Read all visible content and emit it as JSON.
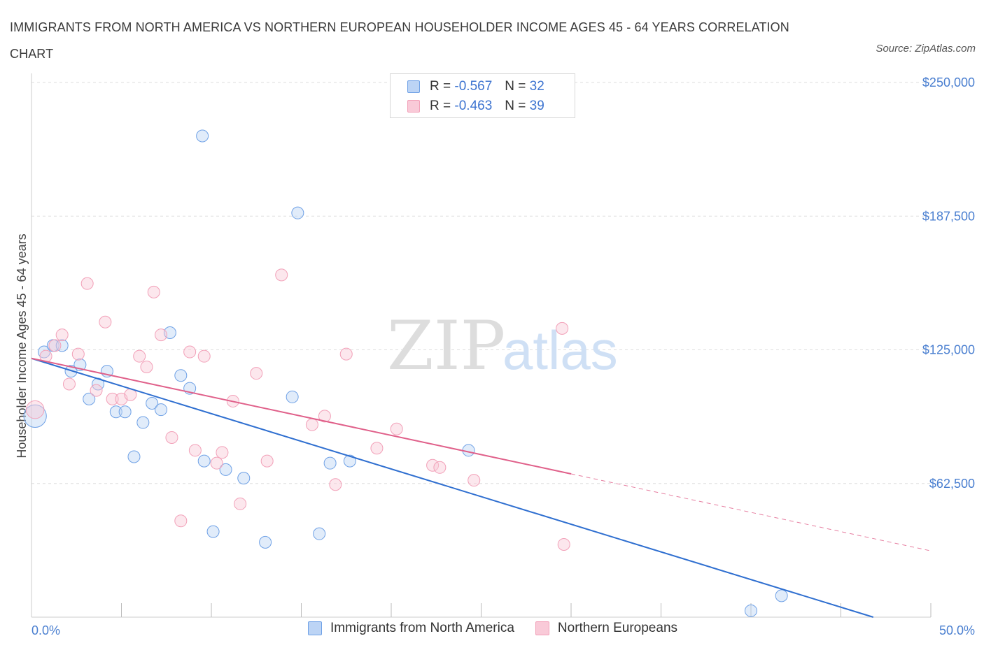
{
  "title": "IMMIGRANTS FROM NORTH AMERICA VS NORTHERN EUROPEAN HOUSEHOLDER INCOME AGES 45 - 64 YEARS CORRELATION CHART",
  "source": "Source: ZipAtlas.com",
  "watermark": {
    "zip": "ZIP",
    "atlas": "atlas"
  },
  "legend": {
    "rows": [
      {
        "r_label": "R = ",
        "r_value": "-0.567",
        "n_label": "N = ",
        "n_value": "32"
      },
      {
        "r_label": "R = ",
        "r_value": "-0.463",
        "n_label": "N = ",
        "n_value": "39"
      }
    ]
  },
  "chart_data": {
    "type": "scatter",
    "title": "IMMIGRANTS FROM NORTH AMERICA VS NORTHERN EUROPEAN HOUSEHOLDER INCOME AGES 45 - 64 YEARS CORRELATION CHART",
    "xlabel": "",
    "ylabel": "Householder Income Ages 45 - 64 years",
    "xlim": [
      0,
      50
    ],
    "ylim": [
      0,
      250000
    ],
    "x_tick_labels": [
      "0.0%",
      "50.0%"
    ],
    "y_ticks": [
      62500,
      125000,
      187500,
      250000
    ],
    "y_tick_labels": [
      "$62,500",
      "$125,000",
      "$187,500",
      "$250,000"
    ],
    "grid": true,
    "series": [
      {
        "name": "Immigrants from North America",
        "color": "#6fa1e6",
        "line_color": "#2f6fd0",
        "trend": {
          "x": [
            0,
            46.8
          ],
          "y": [
            121000,
            0
          ]
        },
        "points": [
          [
            0.2,
            94000,
            1.9
          ],
          [
            0.7,
            124000,
            1
          ],
          [
            1.2,
            127000,
            1
          ],
          [
            1.7,
            127000,
            1
          ],
          [
            2.2,
            115000,
            1
          ],
          [
            2.7,
            118000,
            1
          ],
          [
            3.2,
            102000,
            1
          ],
          [
            3.7,
            109000,
            1
          ],
          [
            4.2,
            115000,
            1
          ],
          [
            4.7,
            96000,
            1
          ],
          [
            5.2,
            96000,
            1
          ],
          [
            5.7,
            75000,
            1
          ],
          [
            6.2,
            91000,
            1
          ],
          [
            6.7,
            100000,
            1
          ],
          [
            7.2,
            97000,
            1
          ],
          [
            7.7,
            133000,
            1
          ],
          [
            8.3,
            113000,
            1
          ],
          [
            8.8,
            107000,
            1
          ],
          [
            9.5,
            225000,
            1
          ],
          [
            9.6,
            73000,
            1
          ],
          [
            10.1,
            40000,
            1
          ],
          [
            10.8,
            69000,
            1
          ],
          [
            11.8,
            65000,
            1
          ],
          [
            13.0,
            35000,
            1
          ],
          [
            14.5,
            103000,
            1
          ],
          [
            14.8,
            189000,
            1
          ],
          [
            16.0,
            39000,
            1
          ],
          [
            16.6,
            72000,
            1
          ],
          [
            17.7,
            73000,
            1
          ],
          [
            24.3,
            78000,
            1
          ],
          [
            40.0,
            3000,
            1
          ],
          [
            41.7,
            10000,
            1
          ]
        ]
      },
      {
        "name": "Northern Europeans",
        "color": "#f2a0b8",
        "line_color": "#e0608a",
        "trend": {
          "x": [
            0,
            30
          ],
          "y": [
            121000,
            67000
          ]
        },
        "trend_dashed": {
          "x": [
            30,
            50
          ],
          "y": [
            67000,
            31000
          ]
        },
        "points": [
          [
            0.2,
            97000,
            1.5
          ],
          [
            0.8,
            122000,
            1
          ],
          [
            1.3,
            127000,
            1
          ],
          [
            1.7,
            132000,
            1
          ],
          [
            2.1,
            109000,
            1
          ],
          [
            2.6,
            123000,
            1
          ],
          [
            3.1,
            156000,
            1
          ],
          [
            3.6,
            106000,
            1
          ],
          [
            4.1,
            138000,
            1
          ],
          [
            4.5,
            102000,
            1
          ],
          [
            5.0,
            102000,
            1
          ],
          [
            5.5,
            104000,
            1
          ],
          [
            6.0,
            122000,
            1
          ],
          [
            6.4,
            117000,
            1
          ],
          [
            6.8,
            152000,
            1
          ],
          [
            7.2,
            132000,
            1
          ],
          [
            7.8,
            84000,
            1
          ],
          [
            8.3,
            45000,
            1
          ],
          [
            8.8,
            124000,
            1
          ],
          [
            9.1,
            78000,
            1
          ],
          [
            9.6,
            122000,
            1
          ],
          [
            10.3,
            72000,
            1
          ],
          [
            10.6,
            77000,
            1
          ],
          [
            11.2,
            101000,
            1
          ],
          [
            11.6,
            53000,
            1
          ],
          [
            12.5,
            114000,
            1
          ],
          [
            13.1,
            73000,
            1
          ],
          [
            13.9,
            160000,
            1
          ],
          [
            15.6,
            90000,
            1
          ],
          [
            16.3,
            94000,
            1
          ],
          [
            16.9,
            62000,
            1
          ],
          [
            17.5,
            123000,
            1
          ],
          [
            19.2,
            79000,
            1
          ],
          [
            20.3,
            88000,
            1
          ],
          [
            22.3,
            71000,
            1
          ],
          [
            22.7,
            70000,
            1
          ],
          [
            24.6,
            64000,
            1
          ],
          [
            29.5,
            135000,
            1
          ],
          [
            29.6,
            34000,
            1
          ]
        ]
      }
    ]
  }
}
